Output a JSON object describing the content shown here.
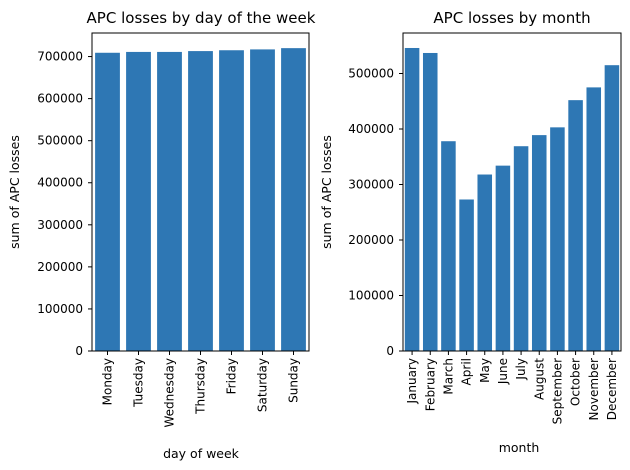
{
  "colors": {
    "bar": "#2e77b4",
    "axis": "#000000",
    "background": "#ffffff"
  },
  "chart_data": [
    {
      "type": "bar",
      "title": "APC losses by day of the week",
      "xlabel": "day of week",
      "ylabel": "sum of APC losses",
      "categories": [
        "Monday",
        "Tuesday",
        "Wednesday",
        "Thursday",
        "Friday",
        "Saturday",
        "Sunday"
      ],
      "values": [
        709000,
        711000,
        711000,
        713000,
        715000,
        717000,
        720000
      ],
      "ylim": [
        0,
        756000
      ],
      "yticks": [
        0,
        100000,
        200000,
        300000,
        400000,
        500000,
        600000,
        700000
      ],
      "grid": false,
      "legend": "none"
    },
    {
      "type": "bar",
      "title": "APC losses by month",
      "xlabel": "month",
      "ylabel": "sum of APC losses",
      "categories": [
        "January",
        "February",
        "March",
        "April",
        "May",
        "June",
        "July",
        "August",
        "September",
        "October",
        "November",
        "December"
      ],
      "values": [
        546000,
        537000,
        378000,
        273000,
        318000,
        334000,
        369000,
        389000,
        403000,
        452000,
        475000,
        515000
      ],
      "ylim": [
        0,
        573000
      ],
      "yticks": [
        0,
        100000,
        200000,
        300000,
        400000,
        500000
      ],
      "grid": false,
      "legend": "none"
    }
  ]
}
